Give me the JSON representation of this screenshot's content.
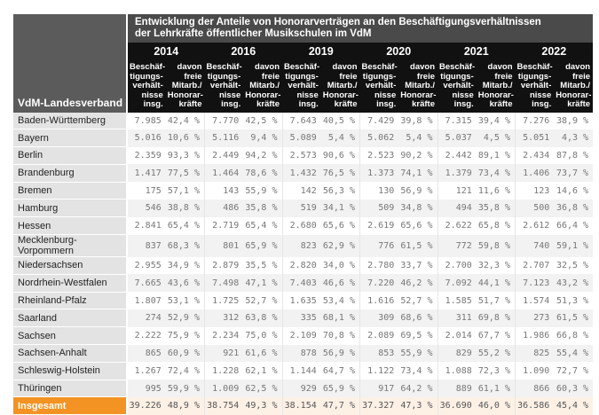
{
  "title_line1": "Entwicklung der Anteile von Honorarverträgen an den Beschäftigungsverhältnissen",
  "title_line2": "der Lehrkräfte öffentlicher Musikschulen im VdM",
  "row_header": "VdM-Landesverband",
  "years": [
    "2014",
    "2016",
    "2019",
    "2020",
    "2021",
    "2022"
  ],
  "sub_headers": {
    "total": "Beschäf-\ntigungs-\nverhält-\nnisse\ninsg.",
    "share": "davon\nfreie\nMitarb./\nHonorar-\nkräfte"
  },
  "colors": {
    "header_dark": "#111111",
    "title_bg": "#4a4a4a",
    "total_accent": "#f39323"
  },
  "rows": [
    {
      "name": "Baden-Württemberg",
      "values": [
        [
          "7.985",
          "42,4 %"
        ],
        [
          "7.770",
          "42,5 %"
        ],
        [
          "7.643",
          "40,5 %"
        ],
        [
          "7.429",
          "39,8 %"
        ],
        [
          "7.315",
          "39,4 %"
        ],
        [
          "7.276",
          "38,9 %"
        ]
      ]
    },
    {
      "name": "Bayern",
      "values": [
        [
          "5.016",
          "10,6 %"
        ],
        [
          "5.116",
          "9,4 %"
        ],
        [
          "5.089",
          "5,4 %"
        ],
        [
          "5.062",
          "5,4 %"
        ],
        [
          "5.037",
          "4,5 %"
        ],
        [
          "5.051",
          "4,3 %"
        ]
      ]
    },
    {
      "name": "Berlin",
      "values": [
        [
          "2.359",
          "93,3 %"
        ],
        [
          "2.449",
          "94,2 %"
        ],
        [
          "2.573",
          "90,6 %"
        ],
        [
          "2.523",
          "90,2 %"
        ],
        [
          "2.442",
          "89,1 %"
        ],
        [
          "2.434",
          "87,8 %"
        ]
      ]
    },
    {
      "name": "Brandenburg",
      "values": [
        [
          "1.417",
          "77,5 %"
        ],
        [
          "1.464",
          "78,6 %"
        ],
        [
          "1.432",
          "76,5 %"
        ],
        [
          "1.373",
          "74,1 %"
        ],
        [
          "1.379",
          "73,4 %"
        ],
        [
          "1.406",
          "73,7 %"
        ]
      ]
    },
    {
      "name": "Bremen",
      "values": [
        [
          "175",
          "57,1 %"
        ],
        [
          "143",
          "55,9 %"
        ],
        [
          "142",
          "56,3 %"
        ],
        [
          "130",
          "56,9 %"
        ],
        [
          "121",
          "11,6 %"
        ],
        [
          "123",
          "14,6 %"
        ]
      ]
    },
    {
      "name": "Hamburg",
      "values": [
        [
          "546",
          "38,8 %"
        ],
        [
          "486",
          "35,8 %"
        ],
        [
          "519",
          "34,1 %"
        ],
        [
          "509",
          "34,8 %"
        ],
        [
          "494",
          "35,8 %"
        ],
        [
          "500",
          "36,8 %"
        ]
      ]
    },
    {
      "name": "Hessen",
      "values": [
        [
          "2.841",
          "65,4 %"
        ],
        [
          "2.719",
          "65,4 %"
        ],
        [
          "2.680",
          "65,6 %"
        ],
        [
          "2.619",
          "65,6 %"
        ],
        [
          "2.622",
          "65,8 %"
        ],
        [
          "2.612",
          "66,4 %"
        ]
      ]
    },
    {
      "name": "Mecklenburg-Vorpommern",
      "values": [
        [
          "837",
          "68,3 %"
        ],
        [
          "801",
          "65,9 %"
        ],
        [
          "823",
          "62,9 %"
        ],
        [
          "776",
          "61,5 %"
        ],
        [
          "772",
          "59,8 %"
        ],
        [
          "740",
          "59,1 %"
        ]
      ]
    },
    {
      "name": "Niedersachsen",
      "values": [
        [
          "2.955",
          "34,9 %"
        ],
        [
          "2.879",
          "35,5 %"
        ],
        [
          "2.820",
          "34,0 %"
        ],
        [
          "2.780",
          "33,7 %"
        ],
        [
          "2.700",
          "32,3 %"
        ],
        [
          "2.707",
          "32,5 %"
        ]
      ]
    },
    {
      "name": "Nordrhein-Westfalen",
      "values": [
        [
          "7.665",
          "43,6 %"
        ],
        [
          "7.498",
          "47,1 %"
        ],
        [
          "7.403",
          "46,6 %"
        ],
        [
          "7.220",
          "46,2 %"
        ],
        [
          "7.092",
          "44,1 %"
        ],
        [
          "7.123",
          "43,2 %"
        ]
      ]
    },
    {
      "name": "Rheinland-Pfalz",
      "values": [
        [
          "1.807",
          "53,1 %"
        ],
        [
          "1.725",
          "52,7 %"
        ],
        [
          "1.635",
          "53,4 %"
        ],
        [
          "1.616",
          "52,7 %"
        ],
        [
          "1.585",
          "51,7 %"
        ],
        [
          "1.574",
          "51,3 %"
        ]
      ]
    },
    {
      "name": "Saarland",
      "values": [
        [
          "274",
          "52,9 %"
        ],
        [
          "312",
          "63,8 %"
        ],
        [
          "335",
          "68,1 %"
        ],
        [
          "309",
          "68,6 %"
        ],
        [
          "311",
          "69,8 %"
        ],
        [
          "273",
          "61,5 %"
        ]
      ]
    },
    {
      "name": "Sachsen",
      "values": [
        [
          "2.222",
          "75,9 %"
        ],
        [
          "2.234",
          "75,0 %"
        ],
        [
          "2.109",
          "70,8 %"
        ],
        [
          "2.089",
          "69,5 %"
        ],
        [
          "2.014",
          "67,7 %"
        ],
        [
          "1.986",
          "66,8 %"
        ]
      ]
    },
    {
      "name": "Sachsen-Anhalt",
      "values": [
        [
          "865",
          "60,9 %"
        ],
        [
          "921",
          "61,6 %"
        ],
        [
          "878",
          "56,9 %"
        ],
        [
          "853",
          "55,9 %"
        ],
        [
          "829",
          "55,2 %"
        ],
        [
          "825",
          "55,4 %"
        ]
      ]
    },
    {
      "name": "Schleswig-Holstein",
      "values": [
        [
          "1.267",
          "72,4 %"
        ],
        [
          "1.228",
          "62,1 %"
        ],
        [
          "1.144",
          "64,7 %"
        ],
        [
          "1.122",
          "73,4 %"
        ],
        [
          "1.088",
          "72,3 %"
        ],
        [
          "1.090",
          "72,7 %"
        ]
      ]
    },
    {
      "name": "Thüringen",
      "values": [
        [
          "995",
          "59,9 %"
        ],
        [
          "1.009",
          "62,5 %"
        ],
        [
          "929",
          "65,9 %"
        ],
        [
          "917",
          "64,2 %"
        ],
        [
          "889",
          "61,1 %"
        ],
        [
          "866",
          "60,3 %"
        ]
      ]
    }
  ],
  "total": {
    "name": "Insgesamt",
    "values": [
      [
        "39.226",
        "48,9 %"
      ],
      [
        "38.754",
        "49,3 %"
      ],
      [
        "38.154",
        "47,7 %"
      ],
      [
        "37.327",
        "47,3 %"
      ],
      [
        "36.690",
        "46,0 %"
      ],
      [
        "36.586",
        "45,4 %"
      ]
    ]
  }
}
